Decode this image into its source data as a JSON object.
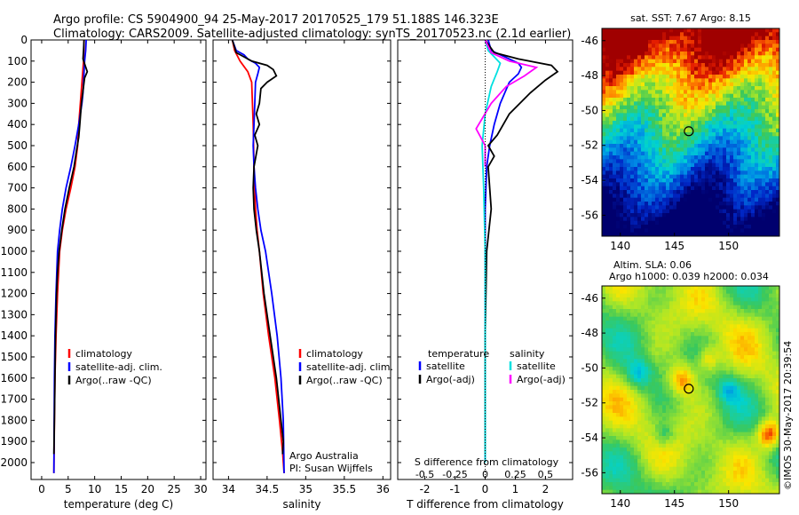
{
  "header": {
    "line1": "Argo profile: CS 5904900_94 25-May-2017 20170525_179 51.188S 146.323E",
    "line2": "Climatology: CARS2009. Satellite-adjusted climatology: synTS_20170523.nc (2.1d earlier)"
  },
  "colors": {
    "climatology": "#ff0000",
    "satellite": "#0000ff",
    "argo": "#000000",
    "cyan": "#00e0e0",
    "magenta": "#ff00ff"
  },
  "depth_axis": {
    "range": [
      0,
      2080
    ],
    "ticks": [
      0,
      100,
      200,
      300,
      400,
      500,
      600,
      700,
      800,
      900,
      1000,
      1100,
      1200,
      1300,
      1400,
      1500,
      1600,
      1700,
      1800,
      1900,
      2000
    ]
  },
  "chart_data": [
    {
      "type": "line",
      "xlabel": "temperature (deg C)",
      "xlim": [
        -2,
        31
      ],
      "xticks": [
        0,
        5,
        10,
        15,
        20,
        25,
        30
      ],
      "legend": [
        "climatology",
        "satellite-adj. clim.",
        "Argo(..raw -QC)"
      ],
      "series": [
        {
          "name": "climatology",
          "color": "red",
          "x": [
            8.0,
            7.9,
            7.6,
            7.3,
            7.0,
            6.8,
            6.3,
            5.5,
            4.6,
            3.9,
            3.4,
            3.0,
            2.7,
            2.5,
            2.4,
            2.3
          ],
          "y": [
            0,
            100,
            200,
            300,
            400,
            500,
            600,
            700,
            800,
            900,
            1000,
            1200,
            1400,
            1600,
            1800,
            2050
          ]
        },
        {
          "name": "satellite-adj. clim.",
          "color": "blue",
          "x": [
            8.4,
            8.3,
            8.1,
            8.0,
            7.9,
            7.8,
            7.6,
            7.0,
            6.3,
            5.5,
            4.6,
            3.9,
            3.4,
            3.0,
            2.7,
            2.5,
            2.4,
            2.3
          ],
          "y": [
            0,
            50,
            100,
            150,
            200,
            250,
            300,
            400,
            500,
            600,
            700,
            800,
            900,
            1000,
            1200,
            1400,
            1600,
            2050
          ]
        },
        {
          "name": "Argo(..raw -QC)",
          "color": "black",
          "x": [
            8.0,
            7.9,
            7.8,
            8.2,
            8.6,
            8.1,
            7.9,
            7.5,
            7.2,
            7.0,
            6.6,
            6.1,
            5.2,
            4.4,
            3.8,
            3.3,
            3.0,
            2.8,
            2.6,
            2.5,
            2.4,
            2.3
          ],
          "y": [
            0,
            50,
            90,
            120,
            150,
            180,
            220,
            300,
            400,
            460,
            520,
            600,
            700,
            800,
            900,
            1000,
            1100,
            1200,
            1400,
            1600,
            1800,
            1960
          ]
        }
      ]
    },
    {
      "type": "line",
      "xlabel": "salinity",
      "xlim": [
        33.8,
        36.1
      ],
      "xticks": [
        34,
        34.5,
        35,
        35.5,
        36
      ],
      "legend": [
        "climatology",
        "satellite-adj. clim.",
        "Argo(..raw -QC)"
      ],
      "annotation": [
        "Argo Australia",
        "PI: Susan Wijffels"
      ],
      "series": [
        {
          "name": "climatology",
          "color": "red",
          "x": [
            34.05,
            34.08,
            34.15,
            34.25,
            34.3,
            34.32,
            34.33,
            34.35,
            34.37,
            34.4,
            34.45,
            34.52,
            34.6,
            34.66,
            34.7,
            34.72
          ],
          "y": [
            0,
            50,
            100,
            150,
            200,
            400,
            600,
            800,
            900,
            1000,
            1200,
            1400,
            1600,
            1800,
            1950,
            2050
          ]
        },
        {
          "name": "satellite-adj. clim.",
          "color": "blue",
          "x": [
            34.05,
            34.1,
            34.2,
            34.25,
            34.35,
            34.4,
            34.38,
            34.35,
            34.34,
            34.33,
            34.32,
            34.33,
            34.35,
            34.38,
            34.42,
            34.48,
            34.56,
            34.63,
            34.68,
            34.71,
            34.72
          ],
          "y": [
            0,
            50,
            70,
            90,
            110,
            130,
            160,
            200,
            300,
            400,
            500,
            600,
            700,
            800,
            900,
            1000,
            1200,
            1400,
            1600,
            1800,
            2050
          ]
        },
        {
          "name": "Argo(..raw -QC)",
          "color": "black",
          "x": [
            34.05,
            34.1,
            34.2,
            34.3,
            34.5,
            34.58,
            34.62,
            34.5,
            34.42,
            34.4,
            34.36,
            34.4,
            34.34,
            34.38,
            34.33,
            34.32,
            34.33,
            34.36,
            34.4,
            34.46,
            34.54,
            34.62,
            34.68,
            34.71,
            34.7
          ],
          "y": [
            0,
            60,
            80,
            100,
            120,
            140,
            170,
            200,
            230,
            300,
            350,
            400,
            450,
            500,
            600,
            700,
            800,
            900,
            1000,
            1200,
            1400,
            1600,
            1800,
            1900,
            1960
          ]
        }
      ]
    },
    {
      "type": "line",
      "xlabel": "T difference from climatology",
      "xlabel_top": "S difference from climatology",
      "xlim": [
        -2.9,
        2.9
      ],
      "xticks": [
        -2,
        -1,
        0,
        1,
        2
      ],
      "xticks_top": [
        "-0.5",
        "-0.25",
        "0",
        "0.25",
        "0.5"
      ],
      "legend_left_title": "temperature",
      "legend_right_title": "salinity",
      "legend_left": [
        "satellite",
        "Argo(-adj)"
      ],
      "legend_right": [
        "satellite",
        "Argo(-adj)"
      ],
      "series": [
        {
          "name": "T satellite",
          "color": "blue",
          "x": [
            0.1,
            0.2,
            0.5,
            0.8,
            1.1,
            1.2,
            1.1,
            0.8,
            0.5,
            0.3,
            0.15,
            0.05,
            0.0,
            0.0,
            0.0
          ],
          "y": [
            0,
            50,
            70,
            90,
            110,
            130,
            160,
            200,
            300,
            400,
            500,
            600,
            800,
            1200,
            2000
          ]
        },
        {
          "name": "T Argo(-adj)",
          "color": "black",
          "x": [
            0.0,
            0.3,
            1.1,
            2.2,
            2.4,
            2.0,
            1.5,
            0.8,
            0.4,
            0.1,
            0.3,
            0.1,
            0.2,
            0.05,
            0.0,
            0.0
          ],
          "y": [
            0,
            60,
            90,
            120,
            150,
            190,
            250,
            350,
            450,
            500,
            550,
            600,
            800,
            1000,
            1400,
            1960
          ]
        },
        {
          "name": "S satellite",
          "color": "cyan",
          "x": [
            0.0,
            0.1,
            0.3,
            0.5,
            0.4,
            0.2,
            0.0,
            -0.1,
            -0.05,
            0.0,
            0.0,
            0.0
          ],
          "y": [
            0,
            50,
            80,
            110,
            150,
            220,
            350,
            500,
            700,
            1000,
            1500,
            2000
          ]
        },
        {
          "name": "S Argo(-adj)",
          "color": "magenta",
          "x": [
            0.0,
            0.2,
            0.8,
            1.7,
            1.3,
            0.7,
            0.2,
            -0.3,
            0.0,
            0.0
          ],
          "y": [
            0,
            60,
            100,
            130,
            170,
            220,
            300,
            420,
            500,
            600
          ]
        }
      ]
    },
    {
      "type": "heatmap",
      "title": "sat. SST: 7.67 Argo: 8.15",
      "xticks": [
        140,
        145,
        150
      ],
      "yticks": [
        -46,
        -48,
        -50,
        -52,
        -54,
        -56
      ],
      "xlim": [
        138.3,
        154.7
      ],
      "ylim": [
        -57.2,
        -45.3
      ],
      "marker": {
        "lon": 146.323,
        "lat": -51.188
      }
    },
    {
      "type": "heatmap",
      "title": "Altim. SLA: 0.06",
      "subtitle": "Argo h1000: 0.039 h2000: 0.034",
      "xticks": [
        140,
        145,
        150
      ],
      "yticks": [
        -46,
        -48,
        -50,
        -52,
        -54,
        -56
      ],
      "xlim": [
        138.3,
        154.7
      ],
      "ylim": [
        -57.2,
        -45.3
      ],
      "marker": {
        "lon": 146.323,
        "lat": -51.188
      }
    }
  ],
  "footer": {
    "credit": "©IMOS 30-May-2017 20:39:54"
  }
}
